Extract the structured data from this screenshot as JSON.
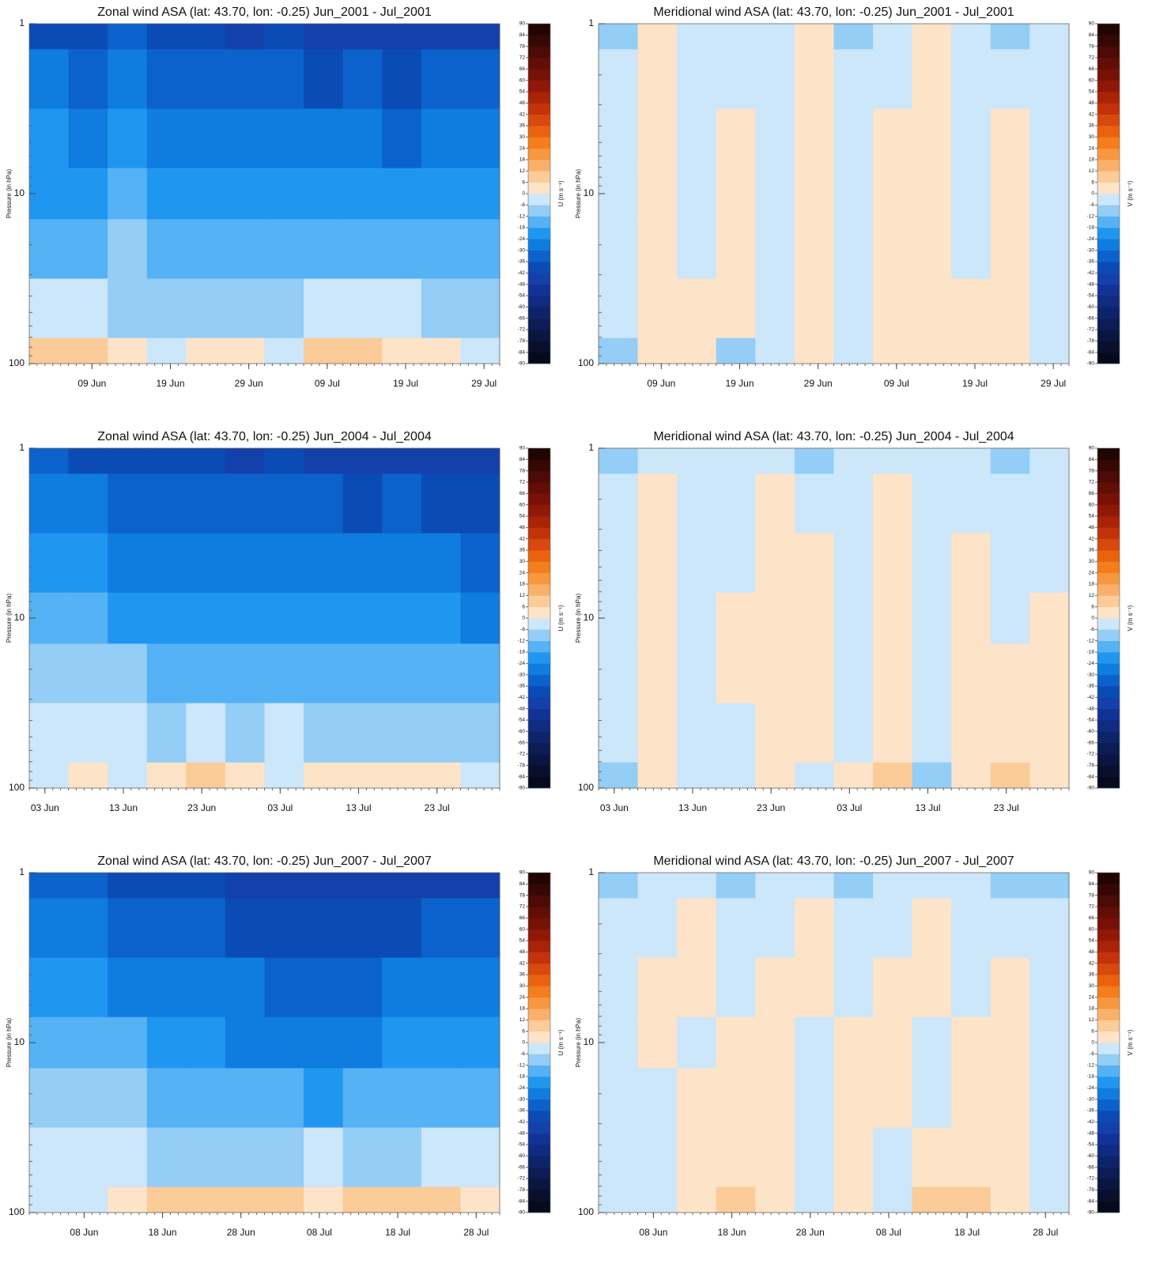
{
  "chart_data": [
    {
      "type": "contour",
      "title": "Zonal wind ASA (lat: 43.70, lon: -0.25) Jun_2001 - Jul_2001",
      "ylabel": "Pressure (in hPa)",
      "colorbar_label": "U (m s⁻¹)",
      "xlim": [
        0,
        60
      ],
      "xticks": [
        {
          "value": 8,
          "label": "09 Jun"
        },
        {
          "value": 18,
          "label": "19 Jun"
        },
        {
          "value": 28,
          "label": "29 Jun"
        },
        {
          "value": 38,
          "label": "09 Jul"
        },
        {
          "value": 48,
          "label": "19 Jul"
        },
        {
          "value": 58,
          "label": "29 Jul"
        }
      ],
      "ylim": [
        1,
        100
      ],
      "yticks": [
        1,
        10,
        100
      ],
      "log_y": true,
      "pressure": [
        1,
        2,
        5,
        10,
        20,
        50,
        100
      ],
      "z": [
        [
          -38,
          -40,
          -36,
          -42,
          -40,
          -44,
          -42,
          -46,
          -44,
          -48,
          -46,
          -44
        ],
        [
          -30,
          -32,
          -28,
          -34,
          -32,
          -36,
          -34,
          -38,
          -36,
          -38,
          -36,
          -34
        ],
        [
          -24,
          -26,
          -22,
          -26,
          -26,
          -30,
          -28,
          -30,
          -30,
          -32,
          -28,
          -26
        ],
        [
          -20,
          -20,
          -18,
          -22,
          -20,
          -24,
          -22,
          -24,
          -22,
          -24,
          -22,
          -20
        ],
        [
          -14,
          -14,
          -12,
          -16,
          -14,
          -18,
          -16,
          -16,
          -14,
          -16,
          -14,
          -14
        ],
        [
          -4,
          -4,
          -8,
          -8,
          -10,
          -10,
          -8,
          -4,
          -4,
          -6,
          -8,
          -8
        ],
        [
          8,
          6,
          4,
          -2,
          2,
          4,
          -2,
          6,
          8,
          4,
          2,
          -4
        ]
      ],
      "cticks": [
        90,
        84,
        78,
        72,
        66,
        60,
        54,
        48,
        42,
        36,
        30,
        24,
        18,
        12,
        6,
        0,
        -6,
        -12,
        -18,
        -24,
        -30,
        -36,
        -42,
        -48,
        -54,
        -60,
        -66,
        -72,
        -78,
        -84,
        -90
      ],
      "colors": [
        "#050a1e",
        "#08102e",
        "#0a1640",
        "#0c1d55",
        "#0e246a",
        "#102b80",
        "#123396",
        "#1440ab",
        "#0a4bb5",
        "#0b62cc",
        "#0f7ce0",
        "#1f97f1",
        "#55b2f5",
        "#94cdf6",
        "#cce6fa",
        "#fde3c8",
        "#fbcb98",
        "#f9b06a",
        "#f7973e",
        "#f47d1c",
        "#ea6210",
        "#d9480c",
        "#c2330a",
        "#a92308",
        "#901806",
        "#781206",
        "#620e06",
        "#4c0b05",
        "#360804",
        "#220503"
      ]
    },
    {
      "type": "contour",
      "title": "Meridional wind ASA (lat: 43.70, lon: -0.25) Jun_2001 - Jul_2001",
      "ylabel": "Pressure (in hPa)",
      "colorbar_label": "V (m s⁻¹)",
      "xlim": [
        0,
        60
      ],
      "xticks": [
        {
          "value": 8,
          "label": "09 Jun"
        },
        {
          "value": 18,
          "label": "19 Jun"
        },
        {
          "value": 28,
          "label": "29 Jun"
        },
        {
          "value": 38,
          "label": "09 Jul"
        },
        {
          "value": 48,
          "label": "19 Jul"
        },
        {
          "value": 58,
          "label": "29 Jul"
        }
      ],
      "ylim": [
        1,
        100
      ],
      "yticks": [
        1,
        10,
        100
      ],
      "log_y": true,
      "pressure": [
        1,
        2,
        5,
        10,
        20,
        50,
        100
      ],
      "z": [
        [
          -8,
          3,
          -3,
          -3,
          -3,
          3,
          -8,
          -3,
          3,
          -3,
          -8,
          -3
        ],
        [
          -3,
          3,
          -3,
          -3,
          -3,
          3,
          -3,
          -3,
          3,
          -3,
          -3,
          -3
        ],
        [
          -3,
          3,
          -3,
          3,
          -3,
          3,
          -3,
          3,
          3,
          -3,
          3,
          -3
        ],
        [
          -3,
          3,
          -3,
          3,
          -3,
          3,
          -3,
          3,
          3,
          -3,
          3,
          -3
        ],
        [
          -3,
          3,
          -3,
          3,
          -3,
          3,
          -3,
          3,
          3,
          -3,
          3,
          -3
        ],
        [
          -3,
          3,
          3,
          3,
          -3,
          3,
          -3,
          3,
          3,
          3,
          3,
          -3
        ],
        [
          -8,
          3,
          3,
          -8,
          -3,
          3,
          -3,
          3,
          3,
          3,
          3,
          -3
        ]
      ],
      "cticks": [
        90,
        84,
        78,
        72,
        66,
        60,
        54,
        48,
        42,
        36,
        30,
        24,
        18,
        12,
        6,
        0,
        -6,
        -12,
        -18,
        -24,
        -30,
        -36,
        -42,
        -48,
        -54,
        -60,
        -66,
        -72,
        -78,
        -84,
        -90
      ],
      "colors": [
        "#050a1e",
        "#08102e",
        "#0a1640",
        "#0c1d55",
        "#0e246a",
        "#102b80",
        "#123396",
        "#1440ab",
        "#0a4bb5",
        "#0b62cc",
        "#0f7ce0",
        "#1f97f1",
        "#55b2f5",
        "#94cdf6",
        "#cce6fa",
        "#fde3c8",
        "#fbcb98",
        "#f9b06a",
        "#f7973e",
        "#f47d1c",
        "#ea6210",
        "#d9480c",
        "#c2330a",
        "#a92308",
        "#901806",
        "#781206",
        "#620e06",
        "#4c0b05",
        "#360804",
        "#220503"
      ]
    },
    {
      "type": "contour",
      "title": "Zonal wind ASA (lat: 43.70, lon: -0.25) Jun_2004 - Jul_2004",
      "ylabel": "Pressure (in hPa)",
      "colorbar_label": "U (m s⁻¹)",
      "xlim": [
        0,
        60
      ],
      "xticks": [
        {
          "value": 2,
          "label": "03 Jun"
        },
        {
          "value": 12,
          "label": "13 Jun"
        },
        {
          "value": 22,
          "label": "23 Jun"
        },
        {
          "value": 32,
          "label": "03 Jul"
        },
        {
          "value": 42,
          "label": "13 Jul"
        },
        {
          "value": 52,
          "label": "23 Jul"
        }
      ],
      "ylim": [
        1,
        100
      ],
      "yticks": [
        1,
        10,
        100
      ],
      "log_y": true,
      "pressure": [
        1,
        2,
        5,
        10,
        20,
        50,
        100
      ],
      "z": [
        [
          -36,
          -38,
          -38,
          -40,
          -42,
          -44,
          -42,
          -44,
          -46,
          -44,
          -46,
          -48
        ],
        [
          -28,
          -30,
          -32,
          -34,
          -34,
          -36,
          -36,
          -36,
          -38,
          -36,
          -38,
          -38
        ],
        [
          -20,
          -22,
          -26,
          -28,
          -28,
          -30,
          -28,
          -30,
          -30,
          -30,
          -30,
          -32
        ],
        [
          -14,
          -16,
          -20,
          -22,
          -22,
          -24,
          -22,
          -24,
          -24,
          -24,
          -24,
          -26
        ],
        [
          -8,
          -10,
          -12,
          -14,
          -16,
          -16,
          -14,
          -16,
          -18,
          -16,
          -18,
          -18
        ],
        [
          -4,
          -4,
          -4,
          -8,
          -4,
          -10,
          -4,
          -8,
          -10,
          -8,
          -10,
          -10
        ],
        [
          -4,
          4,
          -2,
          4,
          8,
          4,
          -2,
          4,
          4,
          2,
          4,
          -2
        ]
      ],
      "cticks": [
        90,
        84,
        78,
        72,
        66,
        60,
        54,
        48,
        42,
        36,
        30,
        24,
        18,
        12,
        6,
        0,
        -6,
        -12,
        -18,
        -24,
        -30,
        -36,
        -42,
        -48,
        -54,
        -60,
        -66,
        -72,
        -78,
        -84,
        -90
      ],
      "colors": [
        "#050a1e",
        "#08102e",
        "#0a1640",
        "#0c1d55",
        "#0e246a",
        "#102b80",
        "#123396",
        "#1440ab",
        "#0a4bb5",
        "#0b62cc",
        "#0f7ce0",
        "#1f97f1",
        "#55b2f5",
        "#94cdf6",
        "#cce6fa",
        "#fde3c8",
        "#fbcb98",
        "#f9b06a",
        "#f7973e",
        "#f47d1c",
        "#ea6210",
        "#d9480c",
        "#c2330a",
        "#a92308",
        "#901806",
        "#781206",
        "#620e06",
        "#4c0b05",
        "#360804",
        "#220503"
      ]
    },
    {
      "type": "contour",
      "title": "Meridional wind ASA (lat: 43.70, lon: -0.25) Jun_2004 - Jul_2004",
      "ylabel": "Pressure (in hPa)",
      "colorbar_label": "V (m s⁻¹)",
      "xlim": [
        0,
        60
      ],
      "xticks": [
        {
          "value": 2,
          "label": "03 Jun"
        },
        {
          "value": 12,
          "label": "13 Jun"
        },
        {
          "value": 22,
          "label": "23 Jun"
        },
        {
          "value": 32,
          "label": "03 Jul"
        },
        {
          "value": 42,
          "label": "13 Jul"
        },
        {
          "value": 52,
          "label": "23 Jul"
        }
      ],
      "ylim": [
        1,
        100
      ],
      "yticks": [
        1,
        10,
        100
      ],
      "log_y": true,
      "pressure": [
        1,
        2,
        5,
        10,
        20,
        50,
        100
      ],
      "z": [
        [
          -8,
          -3,
          -3,
          -3,
          -3,
          -8,
          -3,
          -3,
          -3,
          -3,
          -8,
          -3
        ],
        [
          -3,
          3,
          -3,
          -3,
          3,
          -3,
          -3,
          3,
          -3,
          -3,
          -3,
          -3
        ],
        [
          -3,
          3,
          -3,
          -3,
          3,
          3,
          -3,
          3,
          -3,
          3,
          -3,
          -3
        ],
        [
          -3,
          3,
          -3,
          3,
          3,
          3,
          -3,
          3,
          -3,
          3,
          -3,
          3
        ],
        [
          -3,
          3,
          -3,
          3,
          3,
          3,
          -3,
          3,
          -3,
          3,
          3,
          3
        ],
        [
          -3,
          3,
          -3,
          -3,
          3,
          3,
          -3,
          3,
          -3,
          3,
          3,
          3
        ],
        [
          -8,
          3,
          -3,
          -3,
          3,
          -3,
          3,
          8,
          -8,
          3,
          8,
          3
        ]
      ],
      "cticks": [
        90,
        84,
        78,
        72,
        66,
        60,
        54,
        48,
        42,
        36,
        30,
        24,
        18,
        12,
        6,
        0,
        -6,
        -12,
        -18,
        -24,
        -30,
        -36,
        -42,
        -48,
        -54,
        -60,
        -66,
        -72,
        -78,
        -84,
        -90
      ],
      "colors": [
        "#050a1e",
        "#08102e",
        "#0a1640",
        "#0c1d55",
        "#0e246a",
        "#102b80",
        "#123396",
        "#1440ab",
        "#0a4bb5",
        "#0b62cc",
        "#0f7ce0",
        "#1f97f1",
        "#55b2f5",
        "#94cdf6",
        "#cce6fa",
        "#fde3c8",
        "#fbcb98",
        "#f9b06a",
        "#f7973e",
        "#f47d1c",
        "#ea6210",
        "#d9480c",
        "#c2330a",
        "#a92308",
        "#901806",
        "#781206",
        "#620e06",
        "#4c0b05",
        "#360804",
        "#220503"
      ]
    },
    {
      "type": "contour",
      "title": "Zonal wind ASA (lat: 43.70, lon: -0.25) Jun_2007 - Jul_2007",
      "ylabel": "Pressure (in hPa)",
      "colorbar_label": "U (m s⁻¹)",
      "xlim": [
        0,
        60
      ],
      "xticks": [
        {
          "value": 7,
          "label": "08 Jun"
        },
        {
          "value": 17,
          "label": "18 Jun"
        },
        {
          "value": 27,
          "label": "28 Jun"
        },
        {
          "value": 37,
          "label": "08 Jul"
        },
        {
          "value": 47,
          "label": "18 Jul"
        },
        {
          "value": 57,
          "label": "28 Jul"
        }
      ],
      "ylim": [
        1,
        100
      ],
      "yticks": [
        1,
        10,
        100
      ],
      "log_y": true,
      "pressure": [
        1,
        2,
        5,
        10,
        20,
        50,
        100
      ],
      "z": [
        [
          -34,
          -36,
          -38,
          -40,
          -42,
          -44,
          -46,
          -46,
          -48,
          -46,
          -44,
          -44
        ],
        [
          -28,
          -30,
          -32,
          -34,
          -36,
          -38,
          -38,
          -40,
          -40,
          -38,
          -36,
          -36
        ],
        [
          -22,
          -24,
          -26,
          -28,
          -30,
          -30,
          -32,
          -32,
          -32,
          -30,
          -30,
          -30
        ],
        [
          -16,
          -18,
          -18,
          -24,
          -24,
          -26,
          -26,
          -26,
          -26,
          -24,
          -24,
          -24
        ],
        [
          -10,
          -12,
          -12,
          -16,
          -18,
          -18,
          -18,
          -20,
          -18,
          -18,
          -18,
          -18
        ],
        [
          -4,
          -4,
          -4,
          -8,
          -8,
          -10,
          -8,
          -4,
          -8,
          -8,
          -4,
          -4
        ],
        [
          -4,
          -4,
          4,
          8,
          8,
          10,
          8,
          2,
          8,
          8,
          8,
          4
        ]
      ],
      "cticks": [
        90,
        84,
        78,
        72,
        66,
        60,
        54,
        48,
        42,
        36,
        30,
        24,
        18,
        12,
        6,
        0,
        -6,
        -12,
        -18,
        -24,
        -30,
        -36,
        -42,
        -48,
        -54,
        -60,
        -66,
        -72,
        -78,
        -84,
        -90
      ],
      "colors": [
        "#050a1e",
        "#08102e",
        "#0a1640",
        "#0c1d55",
        "#0e246a",
        "#102b80",
        "#123396",
        "#1440ab",
        "#0a4bb5",
        "#0b62cc",
        "#0f7ce0",
        "#1f97f1",
        "#55b2f5",
        "#94cdf6",
        "#cce6fa",
        "#fde3c8",
        "#fbcb98",
        "#f9b06a",
        "#f7973e",
        "#f47d1c",
        "#ea6210",
        "#d9480c",
        "#c2330a",
        "#a92308",
        "#901806",
        "#781206",
        "#620e06",
        "#4c0b05",
        "#360804",
        "#220503"
      ]
    },
    {
      "type": "contour",
      "title": "Meridional wind ASA (lat: 43.70, lon: -0.25) Jun_2007 - Jul_2007",
      "ylabel": "Pressure (in hPa)",
      "colorbar_label": "V (m s⁻¹)",
      "xlim": [
        0,
        60
      ],
      "xticks": [
        {
          "value": 7,
          "label": "08 Jun"
        },
        {
          "value": 17,
          "label": "18 Jun"
        },
        {
          "value": 27,
          "label": "28 Jun"
        },
        {
          "value": 37,
          "label": "08 Jul"
        },
        {
          "value": 47,
          "label": "18 Jul"
        },
        {
          "value": 57,
          "label": "28 Jul"
        }
      ],
      "ylim": [
        1,
        100
      ],
      "yticks": [
        1,
        10,
        100
      ],
      "log_y": true,
      "pressure": [
        1,
        2,
        5,
        10,
        20,
        50,
        100
      ],
      "z": [
        [
          -8,
          -3,
          -3,
          -8,
          -3,
          -3,
          -8,
          -3,
          -3,
          -3,
          -8,
          -8
        ],
        [
          -3,
          -3,
          3,
          -3,
          -3,
          3,
          -3,
          -3,
          3,
          -3,
          -3,
          -3
        ],
        [
          -3,
          3,
          3,
          -3,
          3,
          3,
          -3,
          3,
          3,
          -3,
          3,
          -3
        ],
        [
          -3,
          3,
          -3,
          3,
          3,
          -3,
          3,
          3,
          -3,
          3,
          3,
          -3
        ],
        [
          -3,
          -3,
          3,
          3,
          3,
          -3,
          3,
          3,
          -3,
          3,
          3,
          -3
        ],
        [
          -3,
          -3,
          3,
          3,
          3,
          -3,
          3,
          -3,
          3,
          3,
          3,
          -3
        ],
        [
          -3,
          -3,
          3,
          8,
          3,
          -3,
          3,
          -3,
          8,
          8,
          3,
          -3
        ]
      ],
      "cticks": [
        90,
        84,
        78,
        72,
        66,
        60,
        54,
        48,
        42,
        36,
        30,
        24,
        18,
        12,
        6,
        0,
        -6,
        -12,
        -18,
        -24,
        -30,
        -36,
        -42,
        -48,
        -54,
        -60,
        -66,
        -72,
        -78,
        -84,
        -90
      ],
      "colors": [
        "#050a1e",
        "#08102e",
        "#0a1640",
        "#0c1d55",
        "#0e246a",
        "#102b80",
        "#123396",
        "#1440ab",
        "#0a4bb5",
        "#0b62cc",
        "#0f7ce0",
        "#1f97f1",
        "#55b2f5",
        "#94cdf6",
        "#cce6fa",
        "#fde3c8",
        "#fbcb98",
        "#f9b06a",
        "#f7973e",
        "#f47d1c",
        "#ea6210",
        "#d9480c",
        "#c2330a",
        "#a92308",
        "#901806",
        "#781206",
        "#620e06",
        "#4c0b05",
        "#360804",
        "#220503"
      ]
    }
  ]
}
